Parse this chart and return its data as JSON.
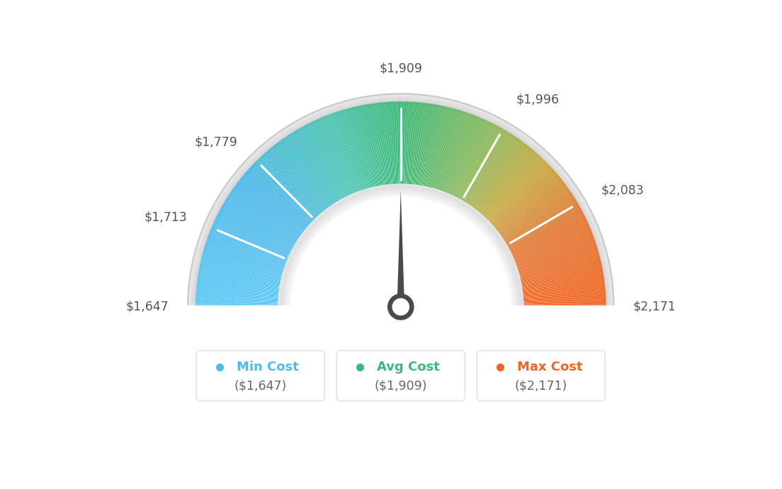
{
  "min_val": 1647,
  "max_val": 2171,
  "avg_val": 1909,
  "tick_labels": [
    "$1,647",
    "$1,713",
    "$1,779",
    "$1,909",
    "$1,996",
    "$2,083",
    "$2,171"
  ],
  "tick_values": [
    1647,
    1713,
    1779,
    1909,
    1996,
    2083,
    2171
  ],
  "legend": [
    {
      "label": "Min Cost",
      "value": "($1,647)",
      "color": "#4dbce9"
    },
    {
      "label": "Avg Cost",
      "value": "($1,909)",
      "color": "#3cb878"
    },
    {
      "label": "Max Cost",
      "value": "($2,171)",
      "color": "#f26522"
    }
  ],
  "bg_color": "#ffffff",
  "needle_color": "#555555",
  "outer_rim_color": "#d4d4d4",
  "inner_track_color": "#d8d8d8",
  "color_stops": [
    [
      0.0,
      "#5bc8f5"
    ],
    [
      0.22,
      "#4db8e8"
    ],
    [
      0.38,
      "#4ac4b0"
    ],
    [
      0.5,
      "#3cb878"
    ],
    [
      0.65,
      "#8ab85a"
    ],
    [
      0.75,
      "#c8a840"
    ],
    [
      0.85,
      "#e07832"
    ],
    [
      1.0,
      "#f26522"
    ]
  ]
}
